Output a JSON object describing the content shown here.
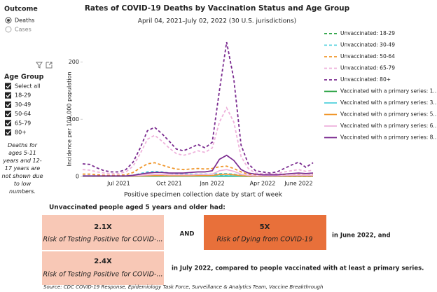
{
  "outcome": {
    "title": "Outcome",
    "options": [
      "Deaths",
      "Cases"
    ]
  },
  "age_filter": {
    "title": "Age Group",
    "options": [
      "Select all",
      "18-29",
      "30-49",
      "50-64",
      "65-79",
      "80+"
    ]
  },
  "note": "Deaths for ages 5-11 years and 12-17 years are not shown due to low numbers.",
  "chart_data": {
    "type": "line",
    "title": "Rates of COVID-19 Deaths by Vaccination Status and Age Group",
    "subtitle": "April 04, 2021–July 02, 2022 (30 U.S. jurisdictions)",
    "y_label": "Incidence per 100,000 population",
    "x_label": "Positive specimen collection date by start of week",
    "categories": [
      null,
      null,
      null,
      null,
      null,
      "Jul 2021",
      null,
      null,
      null,
      null,
      null,
      null,
      "Oct 2021",
      null,
      null,
      null,
      null,
      null,
      "Jan 2022",
      null,
      null,
      null,
      null,
      null,
      null,
      "Apr 2022",
      null,
      null,
      null,
      null,
      "June 2022",
      null,
      null
    ],
    "ylim": [
      0,
      240
    ],
    "yticks": [
      0,
      100,
      200
    ],
    "series": [
      {
        "name": "Unvaccinated: 18-29",
        "color": "#1f9e3a",
        "style": "dashed",
        "values": [
          0.3,
          0.3,
          0.2,
          0.2,
          0.1,
          0.1,
          0.2,
          0.5,
          1.2,
          2,
          2.2,
          2,
          1.5,
          1.2,
          1,
          1,
          1,
          1,
          1,
          1.2,
          1.3,
          1,
          0.5,
          0.3,
          0.1,
          0.1,
          0.1,
          0.1,
          0.1,
          0.1,
          0.1,
          0.1,
          0.1
        ]
      },
      {
        "name": "Unvaccinated: 30-49",
        "color": "#4fd0dc",
        "style": "dashed",
        "values": [
          1,
          1,
          1,
          0.5,
          0.5,
          0.5,
          1,
          2,
          5,
          8,
          9,
          8,
          6,
          5,
          4,
          4,
          4,
          4,
          4,
          5,
          5,
          4,
          2,
          1,
          0.5,
          0.5,
          0.3,
          0.3,
          0.4,
          0.5,
          0.6,
          0.5,
          0.6
        ]
      },
      {
        "name": "Unvaccinated: 50-64",
        "color": "#f0962a",
        "style": "dashed",
        "values": [
          4,
          4,
          3,
          2,
          2,
          2,
          3,
          7,
          15,
          22,
          24,
          20,
          16,
          13,
          12,
          13,
          14,
          13,
          14,
          17,
          18,
          14,
          8,
          4,
          2,
          2,
          1,
          1,
          2,
          2,
          3,
          2,
          3
        ]
      },
      {
        "name": "Unvaccinated: 65-79",
        "color": "#eeb1db",
        "style": "dashed",
        "values": [
          12,
          11,
          8,
          6,
          5,
          5,
          8,
          18,
          40,
          65,
          72,
          62,
          50,
          40,
          37,
          40,
          45,
          42,
          50,
          95,
          120,
          95,
          35,
          14,
          6,
          5,
          4,
          5,
          8,
          10,
          12,
          9,
          11
        ]
      },
      {
        "name": "Unvaccinated: 80+",
        "color": "#7a2a8f",
        "style": "dashed",
        "values": [
          22,
          21,
          15,
          10,
          8,
          8,
          12,
          25,
          50,
          80,
          86,
          75,
          62,
          48,
          45,
          50,
          56,
          50,
          60,
          150,
          235,
          170,
          55,
          22,
          10,
          8,
          6,
          8,
          14,
          20,
          25,
          16,
          24
        ]
      },
      {
        "name": "Vaccinated with a primary series: 1...",
        "color": "#1f9e3a",
        "style": "solid",
        "values": [
          0.1,
          0.1,
          0.1,
          0.1,
          0.1,
          0.1,
          0.1,
          0.1,
          0.2,
          0.3,
          0.3,
          0.3,
          0.2,
          0.2,
          0.2,
          0.2,
          0.2,
          0.2,
          0.2,
          0.3,
          0.3,
          0.2,
          0.1,
          0.1,
          0.1,
          0.1,
          0.1,
          0.1,
          0.1,
          0.1,
          0.1,
          0.1,
          0.1
        ]
      },
      {
        "name": "Vaccinated with a primary series: 3...",
        "color": "#4fd0dc",
        "style": "solid",
        "values": [
          0.1,
          0.1,
          0.1,
          0.1,
          0.1,
          0.1,
          0.1,
          0.2,
          0.4,
          0.6,
          0.7,
          0.6,
          0.5,
          0.4,
          0.4,
          0.4,
          0.5,
          0.5,
          0.6,
          1,
          1.2,
          1,
          0.4,
          0.2,
          0.1,
          0.1,
          0.1,
          0.1,
          0.1,
          0.2,
          0.2,
          0.2,
          0.2
        ]
      },
      {
        "name": "Vaccinated with a primary series: 5...",
        "color": "#f0962a",
        "style": "solid",
        "values": [
          0.2,
          0.2,
          0.2,
          0.2,
          0.2,
          0.2,
          0.2,
          0.4,
          0.8,
          1.2,
          1.4,
          1.3,
          1.1,
          1,
          1,
          1.1,
          1.3,
          1.3,
          1.6,
          3.5,
          4,
          3,
          1.3,
          0.6,
          0.3,
          0.3,
          0.3,
          0.3,
          0.4,
          0.5,
          0.6,
          0.5,
          0.6
        ]
      },
      {
        "name": "Vaccinated with a primary series: 6...",
        "color": "#eeb1db",
        "style": "solid",
        "values": [
          0.5,
          0.5,
          0.5,
          0.5,
          0.5,
          0.5,
          0.5,
          1,
          2,
          3,
          3.5,
          3.5,
          3,
          3,
          3,
          3,
          3.5,
          3.5,
          4,
          10,
          12,
          9,
          4,
          2,
          1,
          1,
          1,
          1,
          1.5,
          2,
          2,
          2,
          2
        ]
      },
      {
        "name": "Vaccinated with a primary series: 8...",
        "color": "#7a2a8f",
        "style": "solid",
        "values": [
          1,
          1,
          1,
          1,
          1,
          1,
          1,
          2,
          4,
          6,
          7,
          7,
          6,
          6,
          6,
          7,
          8,
          8,
          10,
          30,
          37,
          28,
          12,
          6,
          4,
          3,
          3,
          3,
          4,
          5,
          6,
          5,
          6
        ]
      }
    ]
  },
  "summary": {
    "heading": "Unvaccinated people aged 5 years and older had:",
    "box1": {
      "value": "2.1X",
      "label": "Risk of Testing Positive for COVID-..."
    },
    "and": "AND",
    "box2": {
      "value": "5X",
      "label": "Risk of Dying from COVID-19"
    },
    "after_box2": "in June 2022, and",
    "box3": {
      "value": "2.4X",
      "label": "Risk of Testing Positive for COVID-..."
    },
    "after_box3": "in July 2022, compared to people vaccinated with at least a primary series."
  },
  "source": "Source: CDC COVID-19 Response, Epidemiology Task Force, Surveillance & Analytics Team, Vaccine Breakthrough"
}
